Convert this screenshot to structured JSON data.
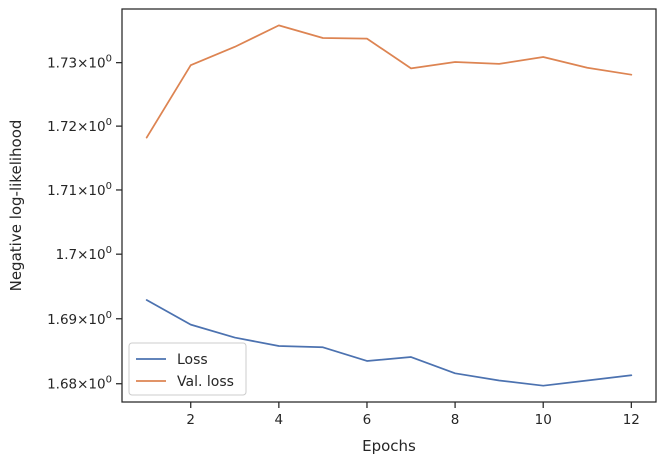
{
  "chart_data": {
    "type": "line",
    "xlabel": "Epochs",
    "ylabel": "Negative log-likelihood",
    "x": [
      1,
      2,
      3,
      4,
      5,
      6,
      7,
      8,
      9,
      10,
      11,
      12
    ],
    "series": [
      {
        "name": "Loss",
        "color": "#4c72b0",
        "values": [
          1.6929,
          1.6891,
          1.6871,
          1.6858,
          1.6856,
          1.6835,
          1.6841,
          1.6816,
          1.6805,
          1.6797,
          1.6805,
          1.6813
        ]
      },
      {
        "name": "Val. loss",
        "color": "#dd8452",
        "values": [
          1.7182,
          1.7296,
          1.7325,
          1.7359,
          1.7339,
          1.7338,
          1.7291,
          1.7301,
          1.7298,
          1.7309,
          1.7292,
          1.7281
        ]
      }
    ],
    "xlim": [
      0.44,
      12.56
    ],
    "ylim": [
      1.6772,
      1.7385
    ],
    "y_scale": "log",
    "xticks": [
      2,
      4,
      6,
      8,
      10,
      12
    ],
    "yticks": [
      {
        "value": 1.68,
        "mantissa": "1.68",
        "base": "10",
        "exp": "0"
      },
      {
        "value": 1.69,
        "mantissa": "1.69",
        "base": "10",
        "exp": "0"
      },
      {
        "value": 1.7,
        "mantissa": "1.7",
        "base": "10",
        "exp": "0"
      },
      {
        "value": 1.71,
        "mantissa": "1.71",
        "base": "10",
        "exp": "0"
      },
      {
        "value": 1.72,
        "mantissa": "1.72",
        "base": "10",
        "exp": "0"
      },
      {
        "value": 1.73,
        "mantissa": "1.73",
        "base": "10",
        "exp": "0"
      }
    ],
    "grid": false,
    "legend_position": "lower-left"
  }
}
